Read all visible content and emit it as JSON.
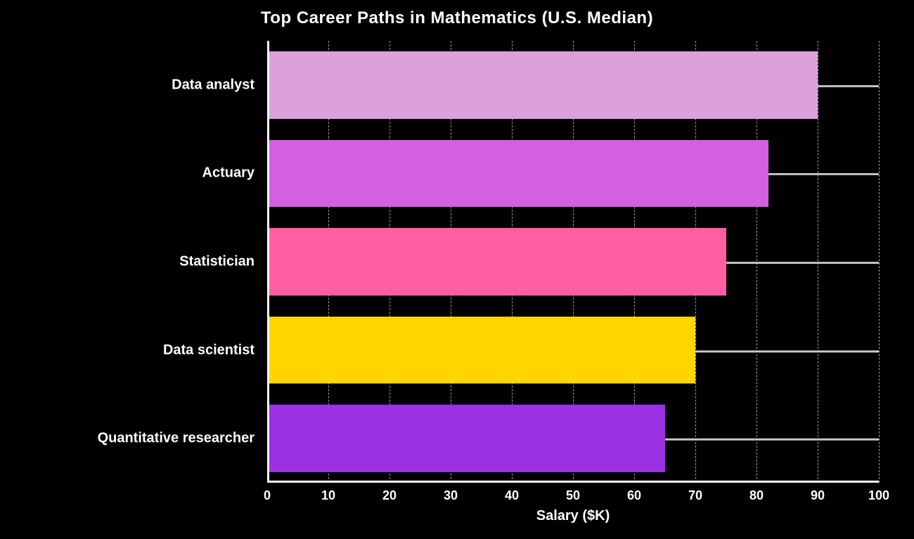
{
  "chart": {
    "type": "horizontal-bar",
    "title": "Top Career Paths in Mathematics (U.S. Median)",
    "xlabel": "Salary ($K)",
    "background_color": "#000000",
    "text_color": "#ffffff",
    "grid_color": "#bfbfbf",
    "solid_marker_color": "#c0c0c0",
    "title_fontsize_pt": 18,
    "label_fontsize_pt": 15,
    "tick_fontsize_pt": 13,
    "font_family": "Arial",
    "xlim": [
      0,
      100
    ],
    "xtick_step": 10,
    "xticks": [
      0,
      10,
      20,
      30,
      40,
      50,
      60,
      70,
      80,
      90,
      100
    ],
    "bar_relative_height": 0.76,
    "categories": [
      {
        "label": "Quantitative researcher",
        "value": 65,
        "color": "#9b30e3"
      },
      {
        "label": "Data scientist",
        "value": 70,
        "color": "#ffd500"
      },
      {
        "label": "Statistician",
        "value": 75,
        "color": "#ff5fa2"
      },
      {
        "label": "Actuary",
        "value": 82,
        "color": "#d45fe0"
      },
      {
        "label": "Data analyst",
        "value": 90,
        "color": "#dda0dd"
      }
    ]
  }
}
